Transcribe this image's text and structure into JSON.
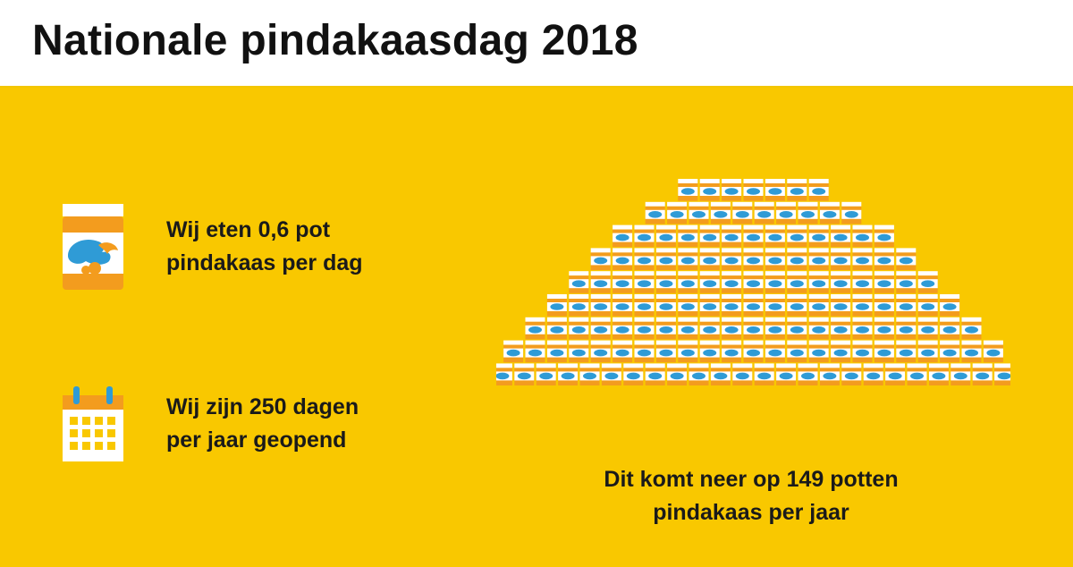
{
  "header": {
    "title": "Nationale pindakaasdag 2018"
  },
  "facts": [
    {
      "icon": "peanut-butter-jar-icon",
      "line1": "Wij eten 0,6 pot",
      "line2": "pindakaas per dag"
    },
    {
      "icon": "calendar-icon",
      "line1": "Wij zijn 250 dagen",
      "line2": "per jaar geopend"
    }
  ],
  "summary": {
    "line1": "Dit komt neer op 149 potten",
    "line2": "pindakaas per jaar"
  },
  "pyramid": {
    "total_jars": 149,
    "row_counts": [
      7,
      10,
      13,
      15,
      17,
      19,
      21,
      23,
      24
    ]
  },
  "colors": {
    "background": "#f9c800",
    "header_background": "#ffffff",
    "jar_body": "#f39c1e",
    "jar_lid": "#ffffff",
    "jar_label": "#2f9bd6",
    "text": "#1a1a1a"
  }
}
